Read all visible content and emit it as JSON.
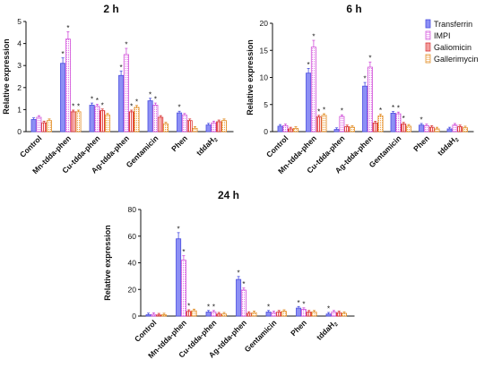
{
  "legend": [
    {
      "name": "Transferrin",
      "color": "#6b6ff0",
      "pattern": "solid"
    },
    {
      "name": "IMPI",
      "color": "#e070e8",
      "pattern": "dotted"
    },
    {
      "name": "Galiomicin",
      "color": "#e84a4a",
      "pattern": "vertical-lines"
    },
    {
      "name": "Gallerimycin",
      "color": "#f0a040",
      "pattern": "dotted"
    }
  ],
  "chart_data": [
    {
      "type": "bar",
      "title": "2 h",
      "ylabel": "Relative expression",
      "ylim": [
        0,
        5
      ],
      "yticks": [
        "0",
        "1",
        "2",
        "3",
        "4",
        "5"
      ],
      "categories": [
        "Control",
        "Mn-tdda-phen",
        "Cu-tdda-phen",
        "Ag-tdda-phen",
        "Gentamicin",
        "Phen",
        "tddaH2"
      ],
      "category_sub": [
        "",
        "",
        "",
        "",
        "",
        "",
        "2"
      ],
      "series": [
        {
          "name": "Transferrin",
          "values": [
            0.55,
            3.1,
            1.2,
            2.55,
            1.4,
            0.85,
            0.3
          ]
        },
        {
          "name": "IMPI",
          "values": [
            0.65,
            4.2,
            1.15,
            3.5,
            1.2,
            0.75,
            0.4
          ]
        },
        {
          "name": "Galiomicin",
          "values": [
            0.4,
            0.9,
            0.95,
            0.9,
            0.65,
            0.5,
            0.45
          ]
        },
        {
          "name": "Gallerimycin",
          "values": [
            0.5,
            0.9,
            0.75,
            1.1,
            0.35,
            0.15,
            0.5
          ]
        }
      ],
      "significance": [
        [
          false,
          true,
          true,
          true,
          true,
          true,
          false
        ],
        [
          false,
          true,
          true,
          true,
          true,
          false,
          false
        ],
        [
          false,
          true,
          true,
          true,
          false,
          false,
          false
        ],
        [
          false,
          true,
          false,
          true,
          false,
          false,
          false
        ]
      ]
    },
    {
      "type": "bar",
      "title": "6 h",
      "ylabel": "Relative expression",
      "ylim": [
        0,
        20
      ],
      "yticks": [
        "0",
        "5",
        "10",
        "15",
        "20"
      ],
      "categories": [
        "Control",
        "Mn-tdda-phen",
        "Cu-tdda-phen",
        "Ag-tdda-phen",
        "Gentamicin",
        "Phen",
        "tddaH2"
      ],
      "category_sub": [
        "",
        "",
        "",
        "",
        "",
        "",
        "2"
      ],
      "series": [
        {
          "name": "Transferrin",
          "values": [
            1.0,
            10.8,
            0.4,
            8.4,
            3.4,
            1.2,
            0.5
          ]
        },
        {
          "name": "IMPI",
          "values": [
            1.1,
            15.6,
            2.8,
            11.9,
            3.3,
            1.1,
            1.2
          ]
        },
        {
          "name": "Galiomicin",
          "values": [
            0.5,
            2.7,
            0.9,
            1.6,
            1.4,
            0.8,
            0.9
          ]
        },
        {
          "name": "Gallerimycin",
          "values": [
            0.6,
            3.0,
            0.8,
            2.9,
            1.0,
            0.5,
            0.7
          ]
        }
      ],
      "significance": [
        [
          false,
          true,
          false,
          true,
          true,
          true,
          false
        ],
        [
          false,
          true,
          true,
          true,
          true,
          false,
          false
        ],
        [
          false,
          true,
          false,
          false,
          true,
          false,
          false
        ],
        [
          false,
          true,
          false,
          true,
          false,
          false,
          false
        ]
      ]
    },
    {
      "type": "bar",
      "title": "24 h",
      "ylabel": "Relative expression",
      "ylim": [
        0,
        80
      ],
      "yticks": [
        "0",
        "20",
        "40",
        "60",
        "80"
      ],
      "categories": [
        "Control",
        "Mn-tdda-phen",
        "Cu-tdda-phen",
        "Ag-tdda-phen",
        "Gentamicin",
        "Phen",
        "tddaH2"
      ],
      "category_sub": [
        "",
        "",
        "",
        "",
        "",
        "",
        "2"
      ],
      "series": [
        {
          "name": "Transferrin",
          "values": [
            1.0,
            58.0,
            3.0,
            27.5,
            3.0,
            6.0,
            1.5
          ]
        },
        {
          "name": "IMPI",
          "values": [
            1.2,
            42.0,
            3.0,
            19.5,
            2.5,
            5.0,
            3.0
          ]
        },
        {
          "name": "Galiomicin",
          "values": [
            0.8,
            3.5,
            1.5,
            2.0,
            3.0,
            3.0,
            2.5
          ]
        },
        {
          "name": "Gallerimycin",
          "values": [
            0.9,
            4.0,
            1.5,
            2.5,
            3.5,
            3.0,
            2.0
          ]
        }
      ],
      "significance": [
        [
          false,
          true,
          true,
          true,
          true,
          true,
          true
        ],
        [
          false,
          true,
          true,
          true,
          false,
          true,
          false
        ],
        [
          false,
          true,
          false,
          false,
          false,
          false,
          false
        ],
        [
          false,
          false,
          false,
          false,
          false,
          false,
          false
        ]
      ]
    }
  ]
}
